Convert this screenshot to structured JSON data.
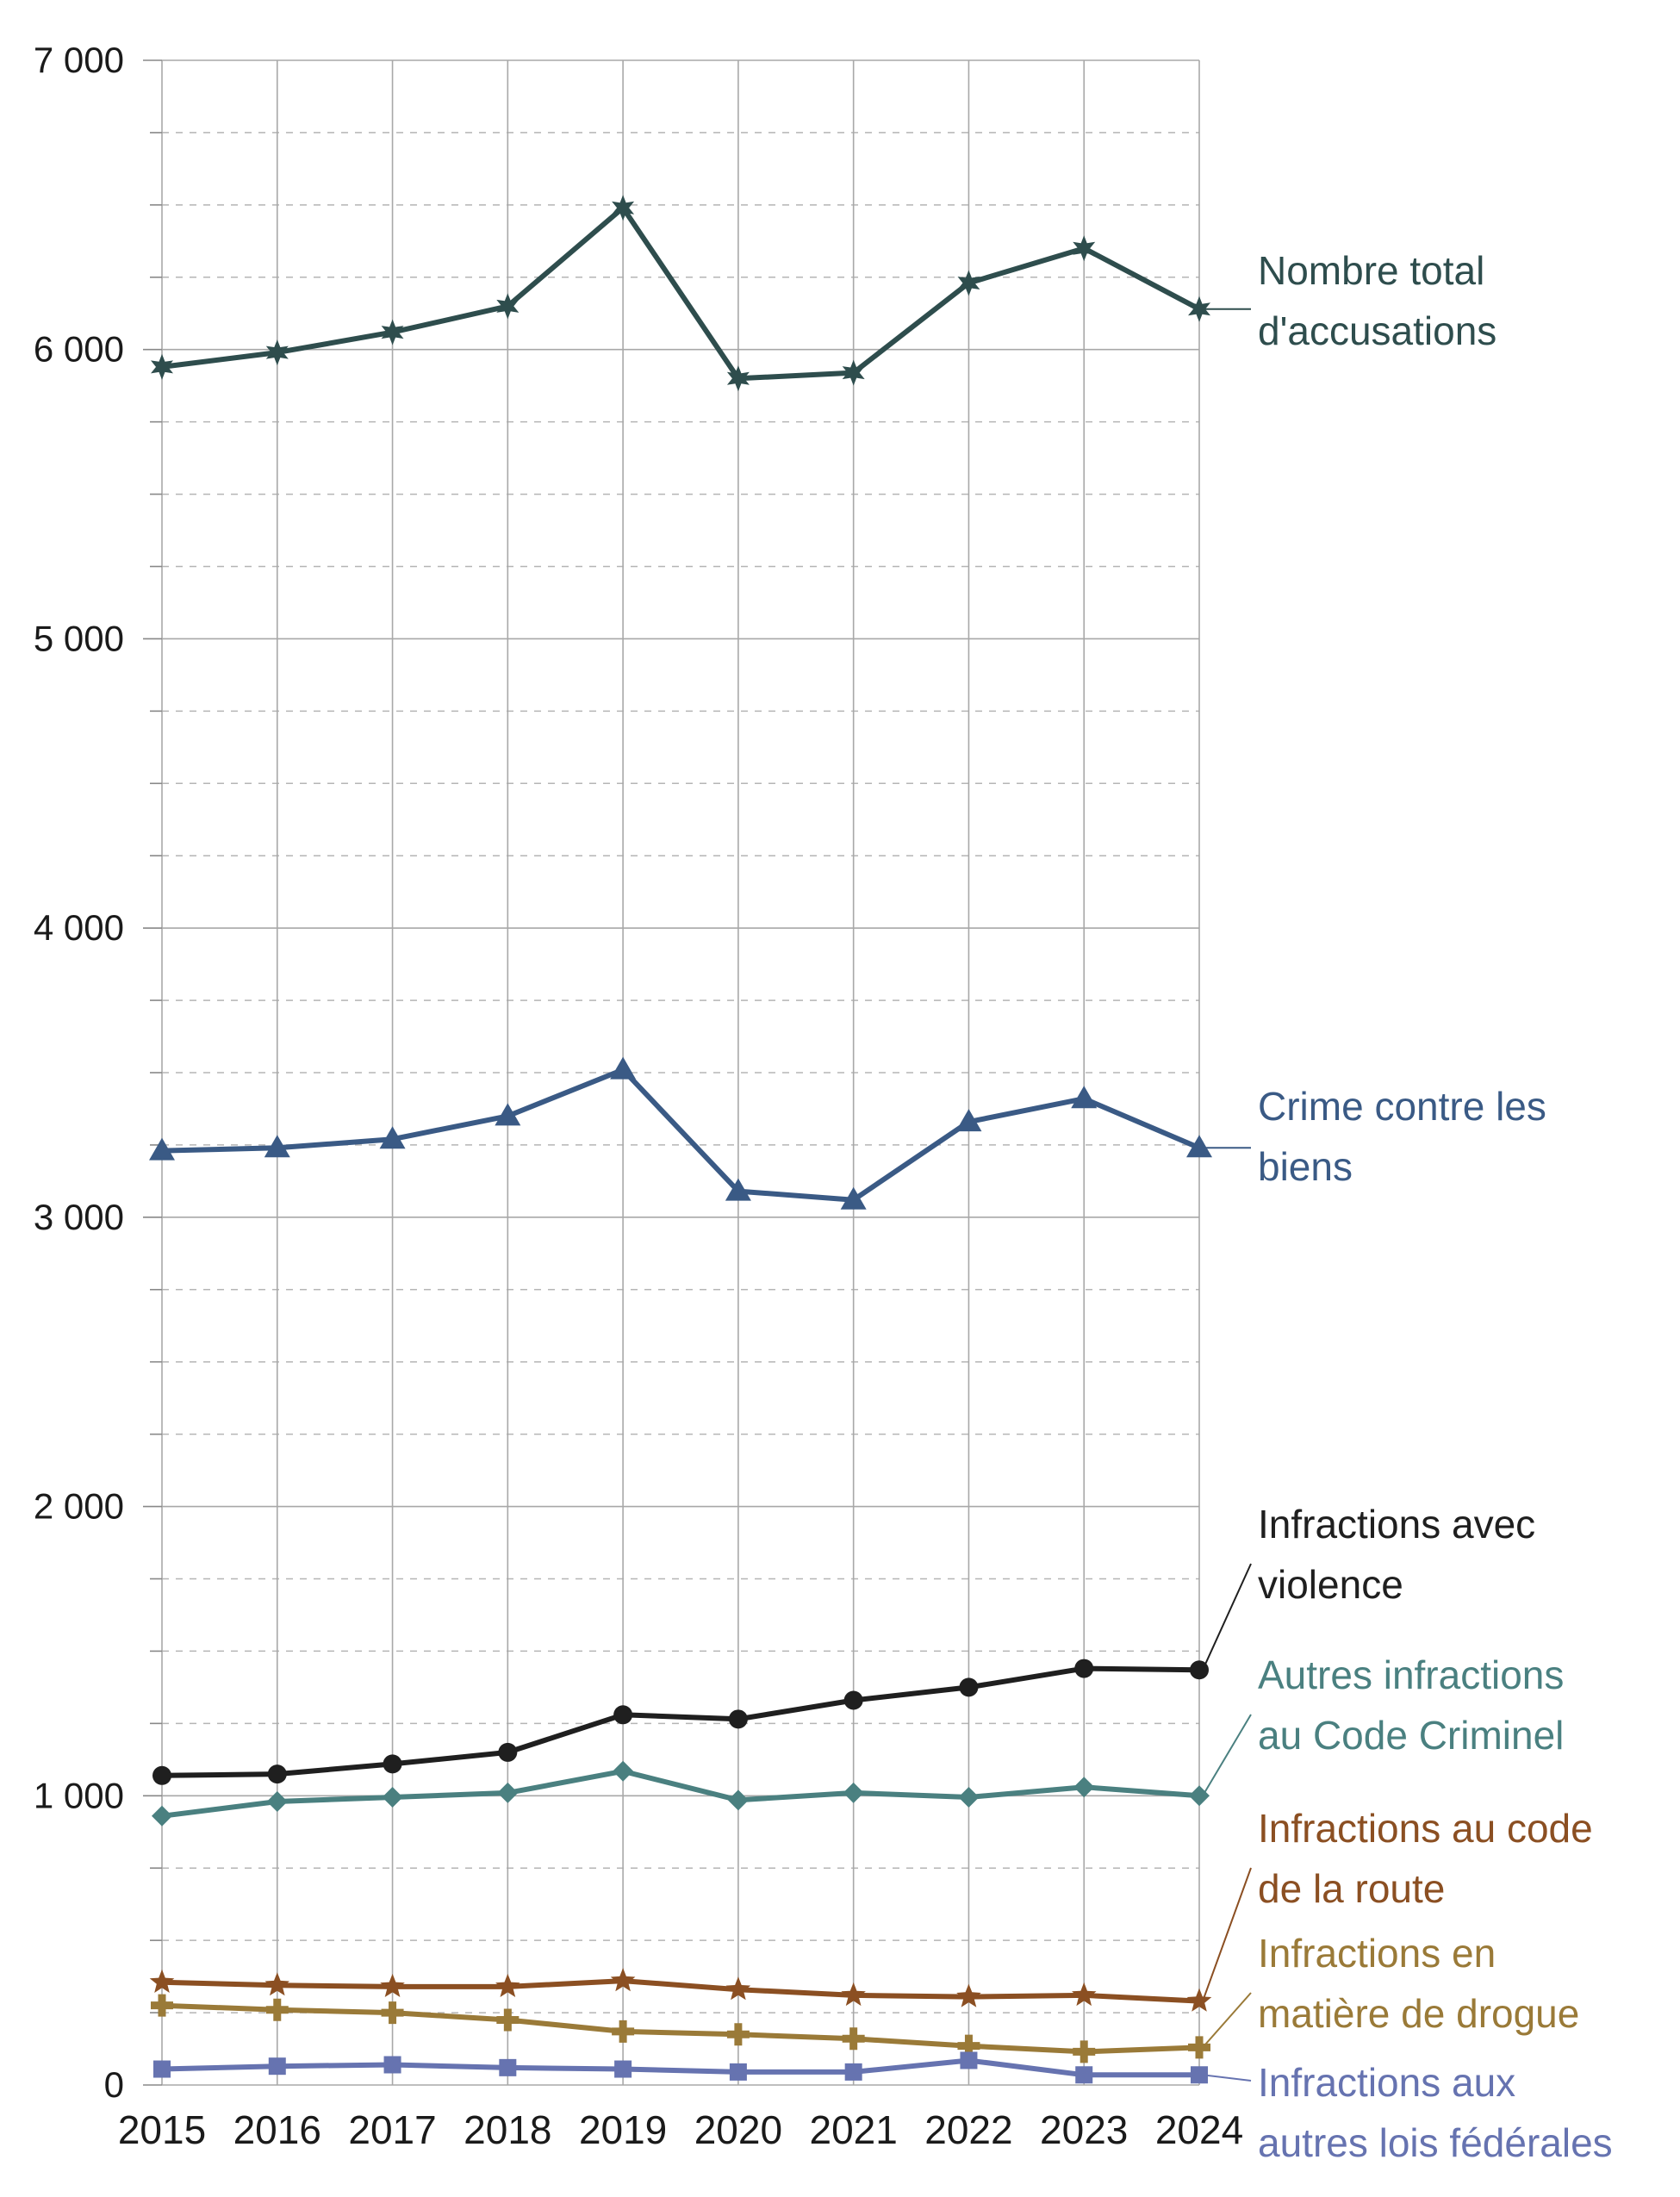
{
  "chart_data": {
    "type": "line",
    "title": "",
    "xlabel": "",
    "ylabel": "",
    "ylim": [
      0,
      7000
    ],
    "y_major_step": 1000,
    "y_minor_step": 250,
    "grid": true,
    "legend": "right, inline labels at line ends",
    "x": [
      "2015",
      "2016",
      "2017",
      "2018",
      "2019",
      "2020",
      "2021",
      "2022",
      "2023",
      "2024"
    ],
    "y_tick_labels": [
      "0",
      "1 000",
      "2 000",
      "3 000",
      "4 000",
      "5 000",
      "6 000",
      "7 000"
    ],
    "series": [
      {
        "key": "total",
        "label_lines": [
          "Nombre total",
          "d'accusations"
        ],
        "color": "#2e4d4d",
        "marker": "star6",
        "values": [
          5940,
          5990,
          6060,
          6150,
          6490,
          5900,
          5920,
          6230,
          6350,
          6140
        ]
      },
      {
        "key": "property",
        "label_lines": [
          "Crime contre les",
          "biens"
        ],
        "color": "#3a5a85",
        "marker": "triangle",
        "values": [
          3230,
          3240,
          3270,
          3350,
          3510,
          3090,
          3060,
          3330,
          3410,
          3240
        ]
      },
      {
        "key": "violent",
        "label_lines": [
          "Infractions avec",
          "violence"
        ],
        "color": "#1f1f1f",
        "marker": "circle",
        "values": [
          1070,
          1075,
          1110,
          1150,
          1280,
          1265,
          1330,
          1375,
          1440,
          1435
        ]
      },
      {
        "key": "other_cc",
        "label_lines": [
          "Autres infractions",
          "au Code Criminel"
        ],
        "color": "#4a8080",
        "marker": "diamond",
        "values": [
          930,
          980,
          995,
          1010,
          1085,
          985,
          1010,
          995,
          1030,
          1000
        ]
      },
      {
        "key": "traffic",
        "label_lines": [
          "Infractions au code",
          "de la route"
        ],
        "color": "#8b4f22",
        "marker": "star5",
        "values": [
          355,
          345,
          340,
          340,
          360,
          330,
          310,
          305,
          310,
          290
        ]
      },
      {
        "key": "drugs",
        "label_lines": [
          "Infractions en",
          "matière de drogue"
        ],
        "color": "#9a7a38",
        "marker": "plus",
        "values": [
          275,
          260,
          250,
          225,
          185,
          175,
          160,
          135,
          115,
          130
        ]
      },
      {
        "key": "federal",
        "label_lines": [
          "Infractions aux",
          "autres lois fédérales"
        ],
        "color": "#6673b0",
        "marker": "square",
        "values": [
          55,
          65,
          70,
          60,
          55,
          45,
          45,
          85,
          35,
          35
        ]
      }
    ]
  }
}
